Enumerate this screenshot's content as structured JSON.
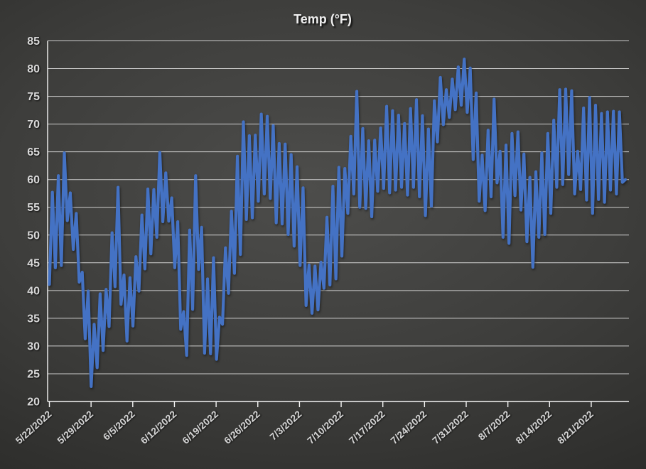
{
  "chart_data": {
    "type": "line",
    "title": "Temp (°F)",
    "xlabel": "",
    "ylabel": "",
    "ylim": [
      20,
      85
    ],
    "y_ticks": [
      20,
      25,
      30,
      35,
      40,
      45,
      50,
      55,
      60,
      65,
      70,
      75,
      80,
      85
    ],
    "x_tick_labels": [
      "5/22/2022",
      "5/29/2022",
      "6/5/2022",
      "6/12/2022",
      "6/19/2022",
      "6/26/2022",
      "7/3/2022",
      "7/10/2022",
      "7/17/2022",
      "7/24/2022",
      "7/31/2022",
      "8/7/2022",
      "8/14/2022",
      "8/21/2022"
    ],
    "grid": "horizontal",
    "legend": "none",
    "points_per_day": 2,
    "note": "values alternate estimated daily low/high from 5/22/2022 through 8/26/2022",
    "colors": {
      "line": "#4472C4",
      "gridline": "#f2f2f2",
      "axis_label": "#d9d9d9",
      "title": "#efefef",
      "background_center": "#4d4d4b",
      "background_edge": "#212120"
    },
    "series": [
      {
        "name": "Temp (°F)",
        "color": "#4472C4",
        "values": [
          41.1,
          57.7,
          44.1,
          60.7,
          44.5,
          64.8,
          52.6,
          57.6,
          47.4,
          53.9,
          41.5,
          43.3,
          31.3,
          39.9,
          22.7,
          33.9,
          26.1,
          39.4,
          29.2,
          40.2,
          33.5,
          50.4,
          40.7,
          58.6,
          37.5,
          42.8,
          30.9,
          42.3,
          33.6,
          46.1,
          39.9,
          53.6,
          43.9,
          58.3,
          46.6,
          58.2,
          49.6,
          64.9,
          52.4,
          61.2,
          52.5,
          56.7,
          44.1,
          52.4,
          33.0,
          36.2,
          28.3,
          50.9,
          36.6,
          60.7,
          43.8,
          51.4,
          28.7,
          42.1,
          28.6,
          45.9,
          27.6,
          35.2,
          33.9,
          47.7,
          39.5,
          54.3,
          43.1,
          64.2,
          46.5,
          70.4,
          52.8,
          67.9,
          53.1,
          68.0,
          56.1,
          71.8,
          57.4,
          71.4,
          56.6,
          69.7,
          52.2,
          66.5,
          52.0,
          66.4,
          50.1,
          64.5,
          48.0,
          62.3,
          44.5,
          58.5,
          37.3,
          44.6,
          35.9,
          44.4,
          36.5,
          45.1,
          40.4,
          53.2,
          41.0,
          58.8,
          42.1,
          62.2,
          46.2,
          62.0,
          53.9,
          67.8,
          57.4,
          75.9,
          55.0,
          69.2,
          54.8,
          67.0,
          53.3,
          67.1,
          57.9,
          69.3,
          58.4,
          73.2,
          57.6,
          72.4,
          58.1,
          71.6,
          58.6,
          70.1,
          57.2,
          72.8,
          58.6,
          74.4,
          56.9,
          71.5,
          53.5,
          69.1,
          55.2,
          74.2,
          66.8,
          78.4,
          69.9,
          76.2,
          71.2,
          78.1,
          72.6,
          80.3,
          73.4,
          81.7,
          72.1,
          80.1,
          63.6,
          75.6,
          56.1,
          64.4,
          54.4,
          68.9,
          56.9,
          74.5,
          59.4,
          65.1,
          49.6,
          66.2,
          48.5,
          68.3,
          57.1,
          68.6,
          54.5,
          64.6,
          48.8,
          60.4,
          44.2,
          61.4,
          49.6,
          64.8,
          50.1,
          68.3,
          53.9,
          70.7,
          58.6,
          76.2,
          59.1,
          76.3,
          60.9,
          76.0,
          57.4,
          65.1,
          58.2,
          72.9,
          56.3,
          74.8,
          53.9,
          73.4,
          56.4,
          71.9,
          55.9,
          72.2,
          58.1,
          72.3,
          57.4,
          72.2,
          59.5,
          60.0
        ]
      }
    ]
  }
}
